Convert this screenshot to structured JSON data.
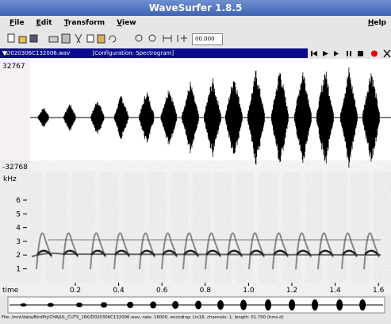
{
  "window": {
    "title": "WaveSurfer 1.8.5"
  },
  "menu": {
    "items": [
      "File",
      "Edit",
      "Transform",
      "View"
    ],
    "help": "Help"
  },
  "toolbar": {
    "time": "00.000"
  },
  "sound": {
    "file": "D020306C132006.wav",
    "configuration": "[Configuration: Spectrogram]"
  },
  "waveform": {
    "max": "32767",
    "min": "-32768"
  },
  "spectrogram": {
    "unit": "kHz",
    "labels": [
      "6",
      "5",
      "4",
      "3",
      "2",
      "1"
    ]
  },
  "time_axis": {
    "label": "time",
    "labels": [
      "0.2",
      "0.4",
      "0.6",
      "0.8",
      "1.0",
      "1.2",
      "1.4",
      "1.6"
    ]
  },
  "status": "File: /mnt/data/BirdPrj/CHAJUL_CUTS_16K/D020306C132006.wav, rate: 16000, encoding: Lin16, channels: 1, length: 01.700 (hms.d)"
}
